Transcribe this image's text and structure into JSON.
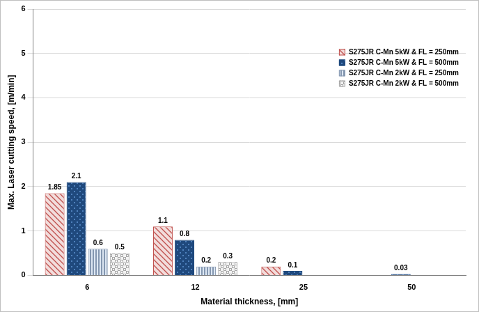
{
  "chart_data": {
    "type": "bar",
    "x_label": "Material thickness, [mm]",
    "y_label": "Max. Laser cutting speed, [m/min]",
    "categories": [
      "6",
      "12",
      "25",
      "50"
    ],
    "series": [
      {
        "name": "S275JR C-Mn 5kW & FL = 250mm",
        "color": "#c0504d",
        "values": [
          1.85,
          1.1,
          0.2,
          null
        ]
      },
      {
        "name": "S275JR C-Mn 5kW & FL = 500mm",
        "color": "#1f497d",
        "values": [
          2.1,
          0.8,
          0.1,
          0.03
        ]
      },
      {
        "name": "S275JR C-Mn 2kW & FL = 250mm",
        "color": "#8497b0",
        "values": [
          0.6,
          0.2,
          null,
          null
        ]
      },
      {
        "name": "S275JR C-Mn 2kW & FL = 500mm",
        "color": "#a6a6a6",
        "values": [
          0.5,
          0.3,
          null,
          null
        ]
      }
    ],
    "ylim": [
      0,
      6
    ],
    "yticks": [
      0,
      1,
      2,
      3,
      4,
      5,
      6
    ],
    "grid": true,
    "legend": "top right",
    "data_labels": true
  }
}
